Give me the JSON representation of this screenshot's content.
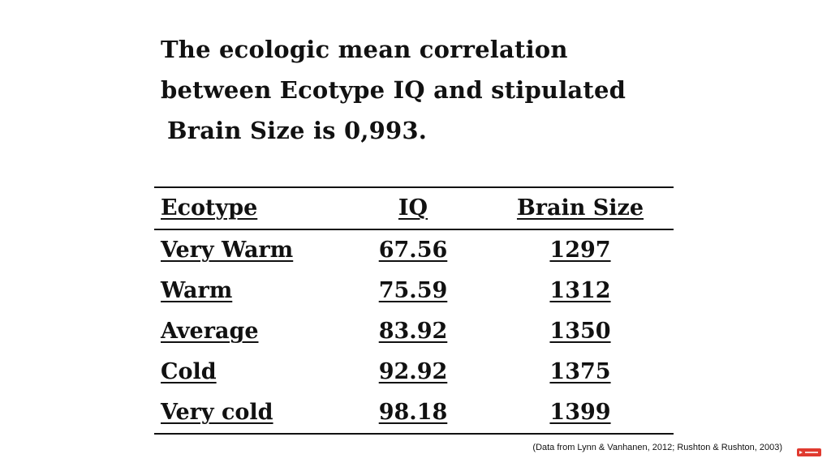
{
  "title": {
    "line1": "The ecologic mean correlation",
    "line2": "between Ecotype IQ and stipulated",
    "line3": "Brain Size is 0,993."
  },
  "table": {
    "headers": [
      "Ecotype",
      "IQ",
      "Brain Size"
    ],
    "rows": [
      [
        "Very Warm",
        "67.56",
        "1297"
      ],
      [
        "Warm",
        "75.59",
        "1312"
      ],
      [
        "Average",
        "83.92",
        "1350"
      ],
      [
        "Cold",
        "92.92",
        "1375"
      ],
      [
        "Very cold",
        "98.18",
        "1399"
      ]
    ]
  },
  "source": "(Data from Lynn & Vanhanen, 2012; Rushton & Rushton, 2003)",
  "colors": {
    "text": "#111111",
    "background": "#ffffff",
    "badge": "#e03a2f"
  },
  "icons": {
    "badge": "subscribe-badge-icon"
  }
}
